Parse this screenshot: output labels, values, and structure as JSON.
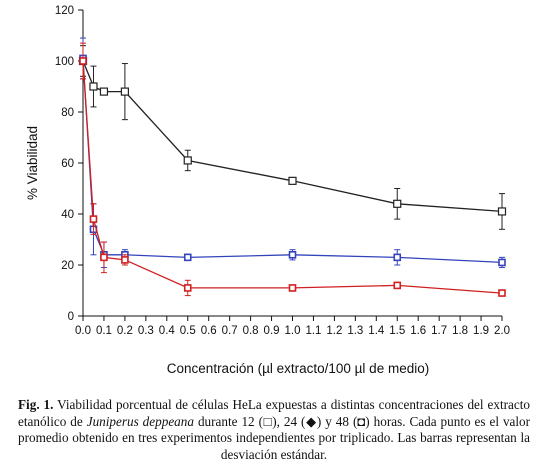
{
  "chart_data": {
    "type": "line",
    "ylabel": "% Viabilidad",
    "xlabel": "Concentración (µl extracto/100 µl de medio)",
    "ylim": [
      0,
      120
    ],
    "xlim": [
      0.0,
      2.0
    ],
    "yticks": [
      "0",
      "20",
      "40",
      "60",
      "80",
      "100",
      "120"
    ],
    "xticks": [
      "0.0",
      "0.1",
      "0.2",
      "0.3",
      "0.4",
      "0.5",
      "0.6",
      "0.7",
      "0.8",
      "0.9",
      "1.0",
      "1.1",
      "1.2",
      "1.3",
      "1.4",
      "1.5",
      "1.6",
      "1.7",
      "1.8",
      "1.9",
      "2.0"
    ],
    "grid": false,
    "series": [
      {
        "color": "#222222",
        "marker": "open-square",
        "points": [
          {
            "x": 0.0,
            "y": 100,
            "err": 6
          },
          {
            "x": 0.05,
            "y": 90,
            "err": 8
          },
          {
            "x": 0.1,
            "y": 88,
            "err": 0
          },
          {
            "x": 0.2,
            "y": 88,
            "err": 11
          },
          {
            "x": 0.5,
            "y": 61,
            "err": 4
          },
          {
            "x": 1.0,
            "y": 53,
            "err": 1
          },
          {
            "x": 1.5,
            "y": 44,
            "err": 6
          },
          {
            "x": 2.0,
            "y": 41,
            "err": 7
          }
        ]
      },
      {
        "color": "#3344bb",
        "marker": "square",
        "points": [
          {
            "x": 0.0,
            "y": 101,
            "err": 8
          },
          {
            "x": 0.05,
            "y": 34,
            "err": 10
          },
          {
            "x": 0.1,
            "y": 24,
            "err": 5
          },
          {
            "x": 0.2,
            "y": 24,
            "err": 2
          },
          {
            "x": 0.5,
            "y": 23,
            "err": 1
          },
          {
            "x": 1.0,
            "y": 24,
            "err": 2
          },
          {
            "x": 1.5,
            "y": 23,
            "err": 3
          },
          {
            "x": 2.0,
            "y": 21,
            "err": 2
          }
        ]
      },
      {
        "color": "#d02020",
        "marker": "square",
        "points": [
          {
            "x": 0.0,
            "y": 100,
            "err": 7
          },
          {
            "x": 0.05,
            "y": 38,
            "err": 6
          },
          {
            "x": 0.1,
            "y": 23,
            "err": 6
          },
          {
            "x": 0.2,
            "y": 22,
            "err": 2
          },
          {
            "x": 0.5,
            "y": 11,
            "err": 3
          },
          {
            "x": 1.0,
            "y": 11,
            "err": 1
          },
          {
            "x": 1.5,
            "y": 12,
            "err": 1
          },
          {
            "x": 2.0,
            "y": 9,
            "err": 1
          }
        ]
      }
    ]
  },
  "caption": {
    "label": "Fig. 1.",
    "text_before_species": "Viabilidad porcentual de células HeLa expuestas a distintas concentraciones del extracto etanólico de",
    "species": "Juniperus deppeana",
    "text_after_species": "durante 12 (□), 24 (◆) y 48 (◘) horas. Cada punto es el valor promedio obtenido en tres experimentos independientes por triplicado. Las barras representan la desviación estándar."
  }
}
